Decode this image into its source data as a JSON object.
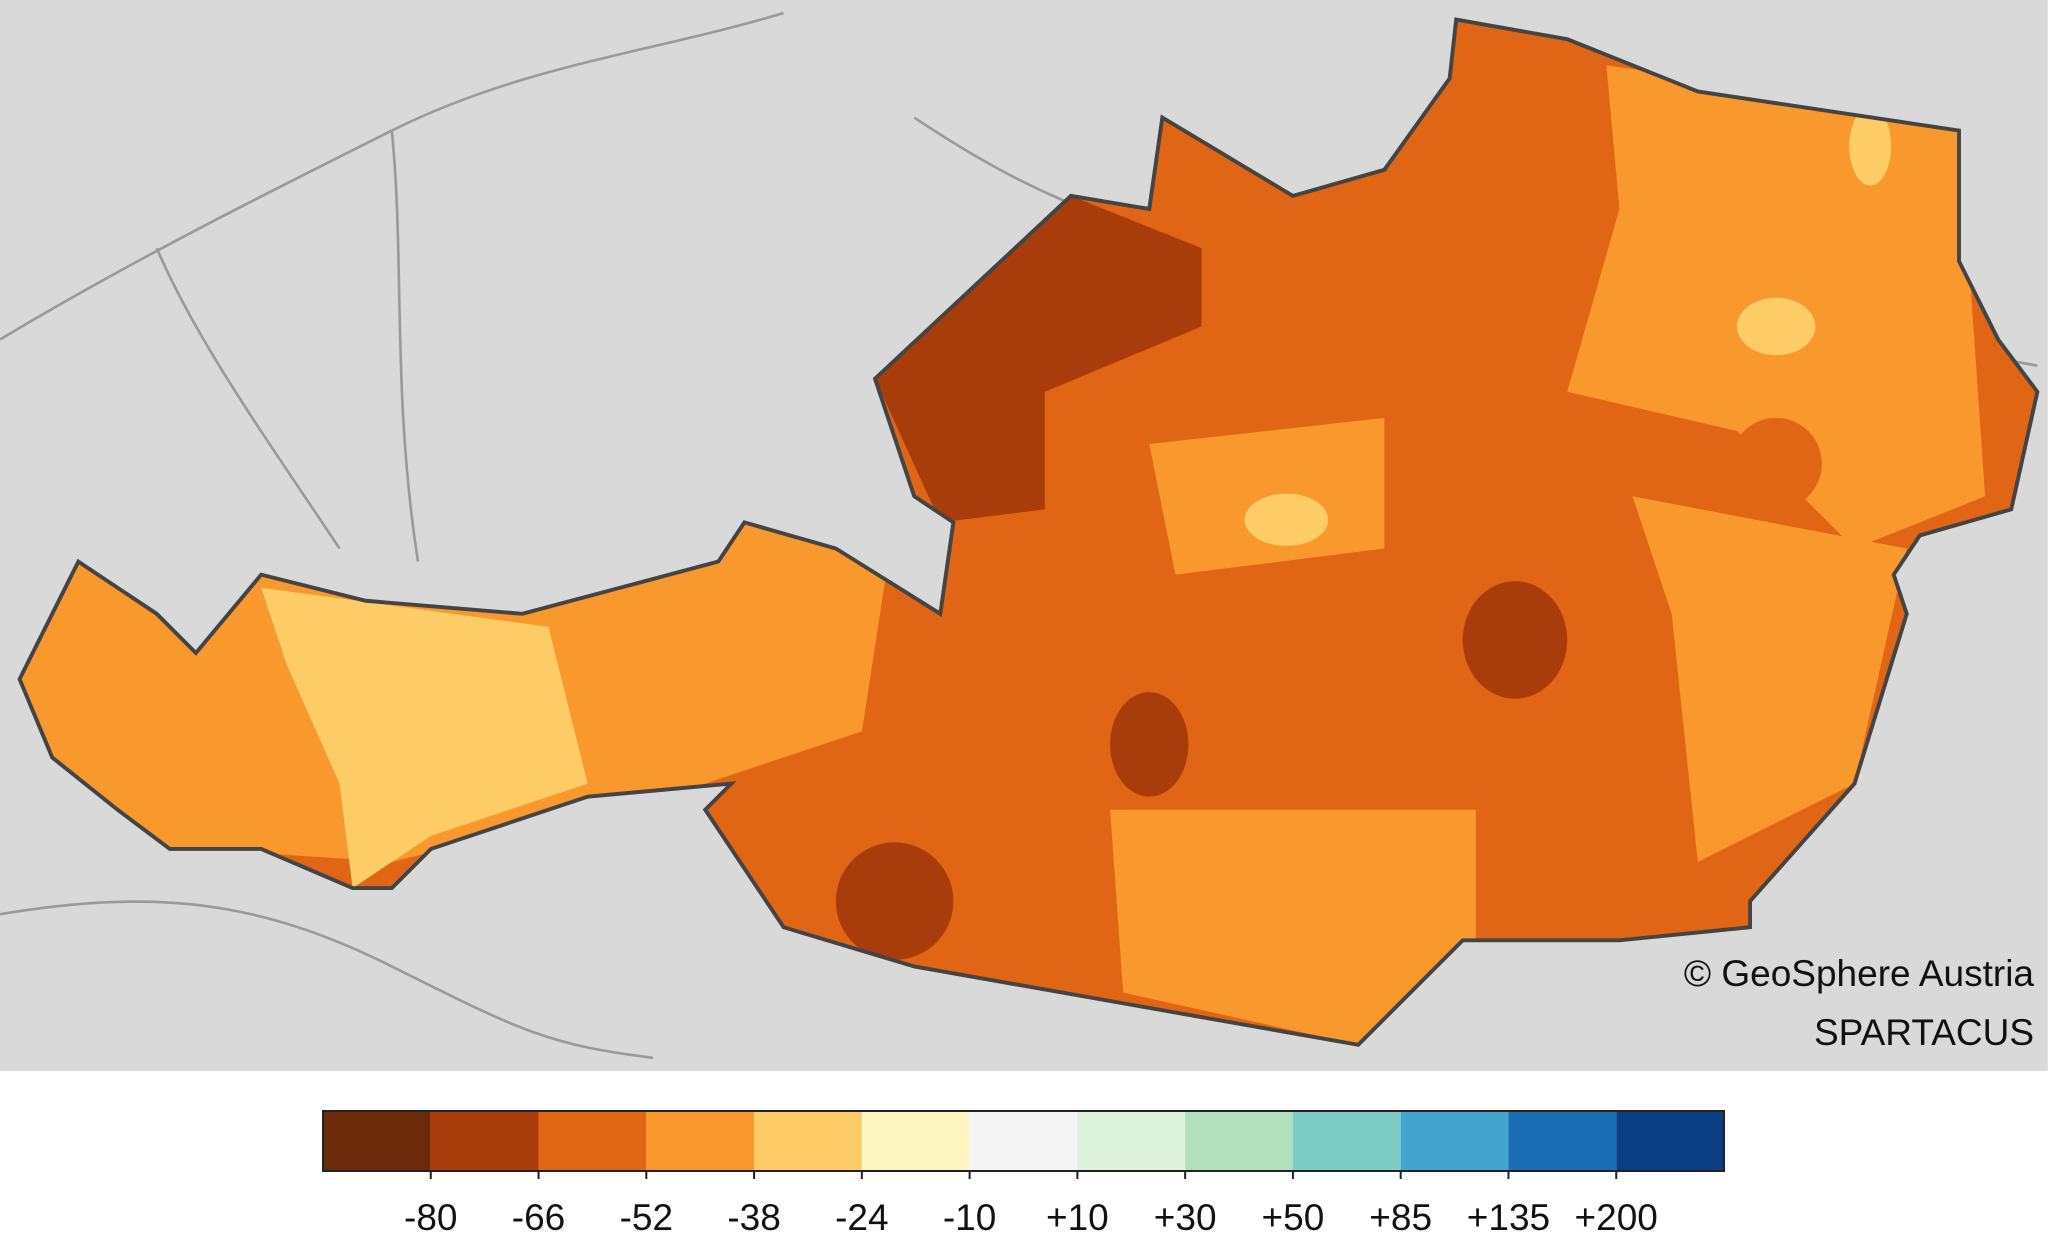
{
  "legend": {
    "colors": [
      "#6b2a0a",
      "#a83c0a",
      "#e06615",
      "#f9982d",
      "#fdcc67",
      "#fef6c0",
      "#f5f5f5",
      "#ddf2da",
      "#b2e0bc",
      "#7ccbc4",
      "#43a5cf",
      "#1a6fb4",
      "#0b3f85"
    ],
    "ticks": [
      -80,
      -66,
      -52,
      -38,
      -24,
      -10,
      {
        "value": 10,
        "label": "+10"
      },
      {
        "value": 30,
        "label": "+30"
      },
      {
        "value": 50,
        "label": "+50"
      },
      {
        "value": 85,
        "label": "+85"
      },
      {
        "value": 135,
        "label": "+135"
      },
      {
        "value": 200,
        "label": "+200"
      }
    ]
  },
  "credits": {
    "copyright": "© GeoSphere Austria",
    "dataset": "SPARTACUS"
  }
}
